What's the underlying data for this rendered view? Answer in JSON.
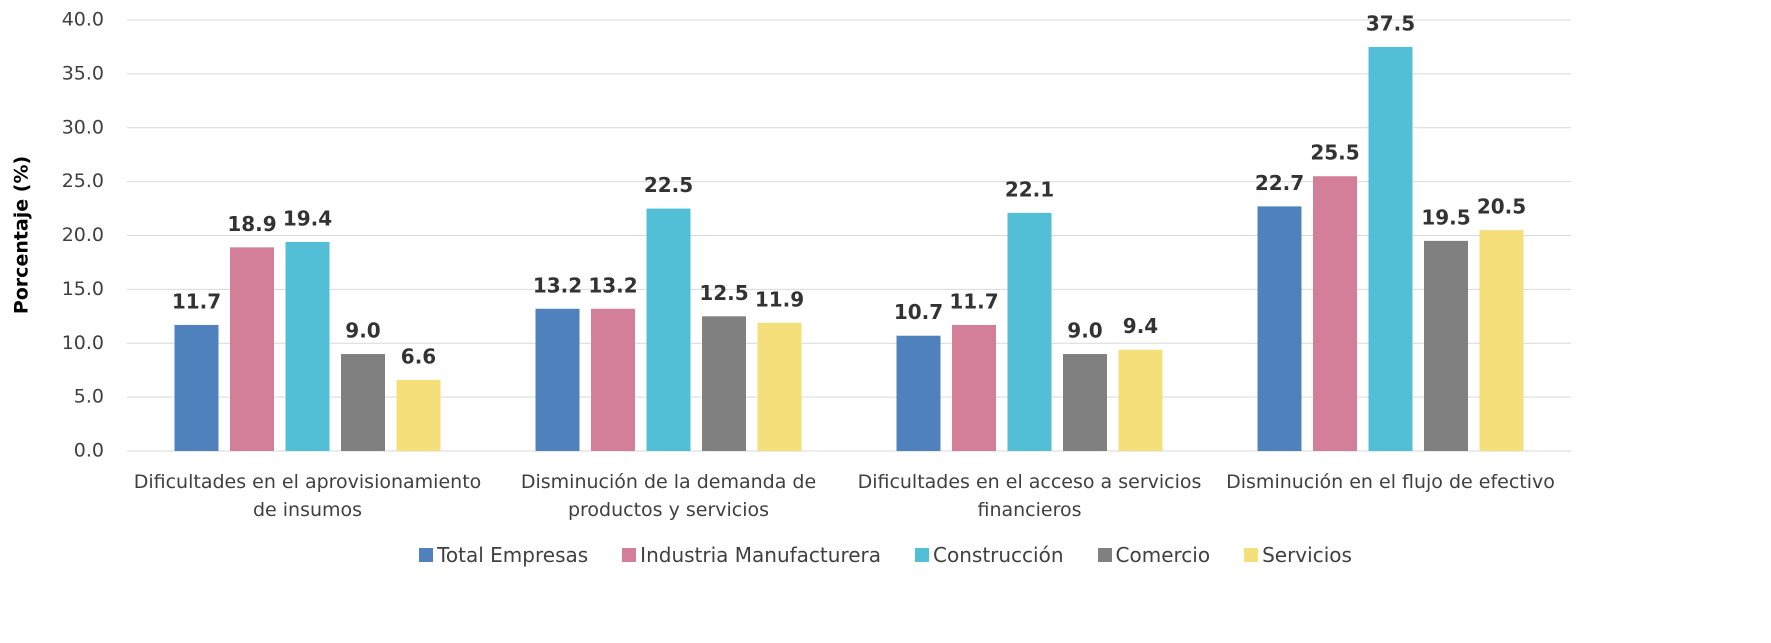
{
  "chart_data": {
    "type": "bar",
    "y_label": "Porcentaje (%)",
    "categories": [
      "Dificultades en el aprovisionamiento de insumos",
      "Disminución de la demanda de productos y servicios",
      "Dificultades en el acceso a servicios financieros",
      "Disminución en el flujo de efectivo"
    ],
    "series": [
      {
        "name": "Total Empresas",
        "color": "#4f81bd",
        "values": [
          11.7,
          13.2,
          10.7,
          22.7
        ],
        "value_labels": [
          "11.7",
          "13.2",
          "10.7",
          "22.7"
        ]
      },
      {
        "name": "Industria Manufacturera",
        "color": "#d47f99",
        "values": [
          18.9,
          13.2,
          11.7,
          25.5
        ],
        "value_labels": [
          "18.9",
          "13.2",
          "11.7",
          "25.5"
        ]
      },
      {
        "name": "Construcción",
        "color": "#53bfd6",
        "values": [
          19.4,
          22.5,
          22.1,
          37.5
        ],
        "value_labels": [
          "19.4",
          "22.5",
          "22.1",
          "37.5"
        ]
      },
      {
        "name": "Comercio",
        "color": "#808080",
        "values": [
          9,
          12.5,
          9,
          19.5
        ],
        "value_labels": [
          "9.0",
          "12.5",
          "9.0",
          "19.5"
        ]
      },
      {
        "name": "Servicios",
        "color": "#f5df7a",
        "values": [
          6.6,
          11.9,
          9.4,
          20.5
        ],
        "value_labels": [
          "6.6",
          "11.9",
          "9.4",
          "20.5"
        ]
      }
    ],
    "ylim": [
      0,
      40
    ],
    "yticks": [
      {
        "value": 0,
        "label": "0.0"
      },
      {
        "value": 5,
        "label": "5.0"
      },
      {
        "value": 10,
        "label": "10.0"
      },
      {
        "value": 15,
        "label": "15.0"
      },
      {
        "value": 20,
        "label": "20.0"
      },
      {
        "value": 25,
        "label": "25.0"
      },
      {
        "value": 30,
        "label": "30.0"
      },
      {
        "value": 35,
        "label": "35.0"
      },
      {
        "value": 40,
        "label": "40.0"
      }
    ],
    "grid": true,
    "legend": "bottom"
  }
}
